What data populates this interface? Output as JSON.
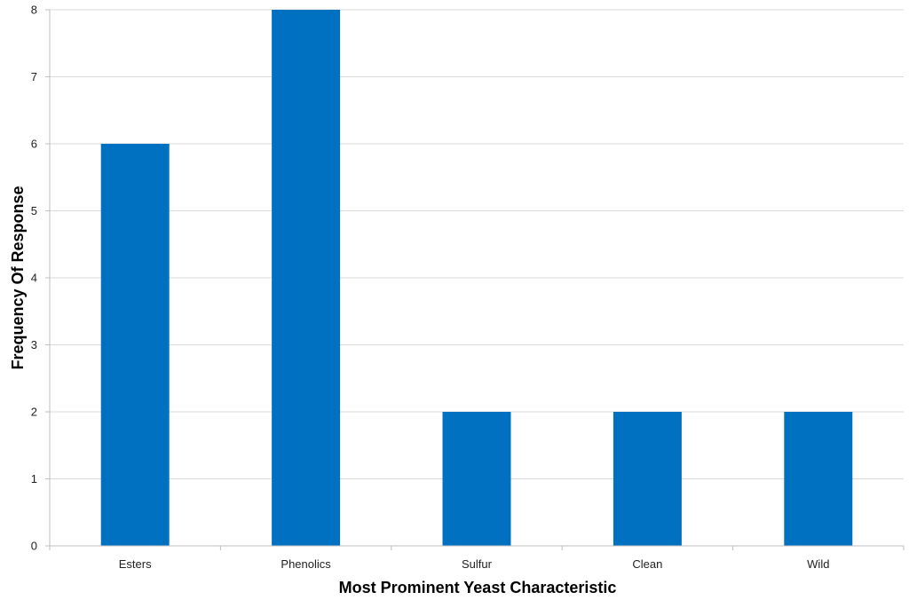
{
  "chart_data": {
    "type": "bar",
    "categories": [
      "Esters",
      "Phenolics",
      "Sulfur",
      "Clean",
      "Wild"
    ],
    "values": [
      6,
      8,
      2,
      2,
      2
    ],
    "xlabel": "Most Prominent Yeast Characteristic",
    "ylabel": "Frequency Of Response",
    "ylim": [
      0,
      8
    ],
    "yticks": [
      "0",
      "1",
      "2",
      "3",
      "4",
      "5",
      "6",
      "7",
      "8"
    ],
    "grid": true,
    "legend": "none",
    "bar_color": "#0070c0"
  }
}
